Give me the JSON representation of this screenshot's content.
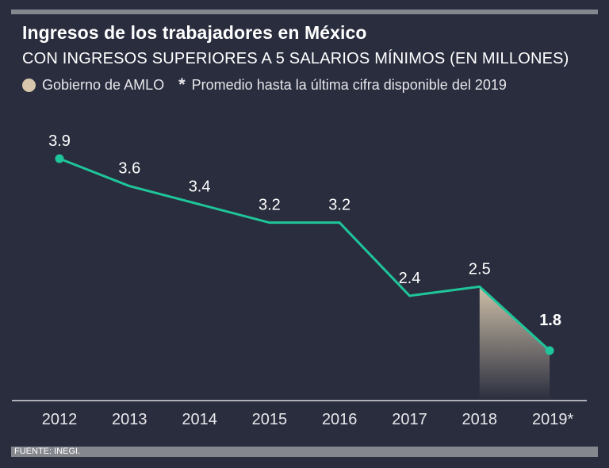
{
  "header": {
    "title": "Ingresos de los trabajadores en México",
    "subtitle": "CON INGRESOS SUPERIORES A 5 SALARIOS MÍNIMOS (EN MILLONES)",
    "legend_amlo": "Gobierno de AMLO",
    "legend_star": "*",
    "legend_note": "Promedio hasta la última cifra disponible del 2019"
  },
  "colors": {
    "background": "#2a2d3e",
    "line": "#1fc59a",
    "amlo_fill": "#d6c7ad",
    "rule": "#85878f"
  },
  "chart_data": {
    "type": "line",
    "title": "Ingresos de los trabajadores en México",
    "subtitle": "CON INGRESOS SUPERIORES A 5 SALARIOS MÍNIMOS (EN MILLONES)",
    "categories": [
      "2012",
      "2013",
      "2014",
      "2015",
      "2016",
      "2017",
      "2018",
      "2019*"
    ],
    "values": [
      3.9,
      3.6,
      3.4,
      3.2,
      3.2,
      2.4,
      2.5,
      1.8
    ],
    "labels": [
      "3.9",
      "3.6",
      "3.4",
      "3.2",
      "3.2",
      "2.4",
      "2.5",
      "1.8"
    ],
    "ylim": [
      0.8,
      4.4
    ],
    "grid": false,
    "legend": "top-left",
    "highlight_range": [
      "2018",
      "2019*"
    ],
    "highlight_label": "Gobierno de AMLO"
  },
  "footer": {
    "source": "FUENTE: INEGI."
  }
}
